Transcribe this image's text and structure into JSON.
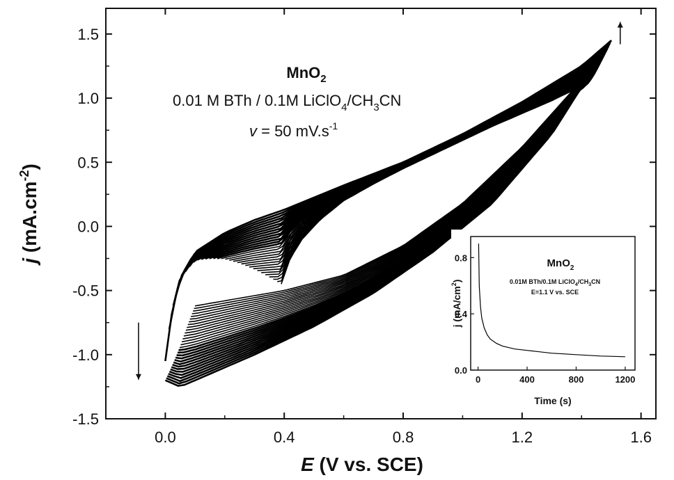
{
  "chart_data": [
    {
      "type": "line",
      "xlabel": {
        "symbol": "E",
        "rest": " (V vs. SCE)"
      },
      "ylabel": {
        "symbol": "j",
        "rest": " (mA.cm",
        "sup": "-2",
        "tail": ")"
      },
      "xlim": [
        -0.2,
        1.65
      ],
      "ylim": [
        -1.5,
        1.7
      ],
      "x_ticks": [
        0.0,
        0.4,
        0.8,
        1.2,
        1.6
      ],
      "x_tick_labels": [
        "0.0",
        "0.4",
        "0.8",
        "1.2",
        "1.6"
      ],
      "y_ticks": [
        -1.5,
        -1.0,
        -0.5,
        0.0,
        0.5,
        1.0,
        1.5
      ],
      "y_tick_labels": [
        "-1.5",
        "-1.0",
        "-0.5",
        "0.0",
        "0.5",
        "1.0",
        "1.5"
      ],
      "annotation": {
        "line1": {
          "base": "MnO",
          "sub": "2"
        },
        "line2": {
          "a": "0.01 M BTh / 0.1M LiClO",
          "sub1": "4",
          "b": "/CH",
          "sub2": "3",
          "c": "CN"
        },
        "line3": {
          "v": "v",
          "rest": " = 50 mV.s",
          "sup": "-1"
        }
      },
      "arrows": [
        {
          "direction": "up",
          "at": [
            1.53,
            1.42
          ]
        },
        {
          "direction": "down",
          "at": [
            -0.09,
            -0.75
          ]
        }
      ],
      "cycles": 30,
      "description_series": {
        "first_cycle_anodic": {
          "x": [
            0.39,
            0.42,
            0.46,
            0.52,
            0.6,
            0.7,
            0.8,
            0.9,
            1.0,
            1.1,
            1.2,
            1.3,
            1.37
          ],
          "y": [
            -0.45,
            -0.25,
            -0.1,
            0.05,
            0.2,
            0.33,
            0.45,
            0.56,
            0.67,
            0.78,
            0.88,
            0.98,
            1.06
          ]
        },
        "first_cycle_cathodic": {
          "x": [
            1.37,
            1.2,
            1.0,
            0.8,
            0.6,
            0.4,
            0.2,
            0.1
          ],
          "y": [
            1.06,
            0.62,
            0.18,
            -0.15,
            -0.38,
            -0.5,
            -0.58,
            -0.62
          ]
        },
        "last_cycle_anodic": {
          "x": [
            0.0,
            0.02,
            0.05,
            0.1,
            0.2,
            0.3,
            0.4,
            0.6,
            0.8,
            1.0,
            1.2,
            1.4,
            1.5
          ],
          "y": [
            -1.05,
            -0.7,
            -0.4,
            -0.2,
            -0.05,
            0.05,
            0.13,
            0.32,
            0.5,
            0.72,
            0.97,
            1.25,
            1.45
          ]
        },
        "last_cycle_cathodic": {
          "x": [
            1.5,
            1.3,
            1.1,
            0.9,
            0.7,
            0.5,
            0.3,
            0.15,
            0.05,
            0.0
          ],
          "y": [
            1.45,
            0.72,
            0.18,
            -0.2,
            -0.52,
            -0.78,
            -1.0,
            -1.15,
            -1.25,
            -1.2
          ]
        }
      }
    },
    {
      "type": "line",
      "inset": true,
      "xlabel": "Time (s)",
      "ylabel": {
        "a": "j (mA/cm",
        "sup": "2",
        "b": ")"
      },
      "xlim": [
        -60,
        1280
      ],
      "ylim": [
        0.0,
        0.95
      ],
      "x_ticks": [
        0,
        400,
        800,
        1200
      ],
      "x_tick_labels": [
        "0",
        "400",
        "800",
        "1200"
      ],
      "y_ticks": [
        0.0,
        0.4,
        0.8
      ],
      "y_tick_labels": [
        "0.0",
        "0.4",
        "0.8"
      ],
      "annotation": {
        "title": {
          "base": "MnO",
          "sub": "2"
        },
        "line1": {
          "a": "0.01M BTh/0.1M LiClO",
          "sub1": "4",
          "b": "/CH",
          "sub2": "3",
          "c": "CN"
        },
        "line2": "E=1.1 V vs. SCE"
      },
      "series": [
        {
          "x": [
            5,
            10,
            20,
            30,
            50,
            75,
            100,
            150,
            200,
            300,
            400,
            500,
            600,
            800,
            1000,
            1200
          ],
          "y": [
            0.9,
            0.6,
            0.45,
            0.37,
            0.3,
            0.25,
            0.22,
            0.19,
            0.17,
            0.15,
            0.14,
            0.13,
            0.12,
            0.11,
            0.1,
            0.095
          ]
        }
      ]
    }
  ]
}
